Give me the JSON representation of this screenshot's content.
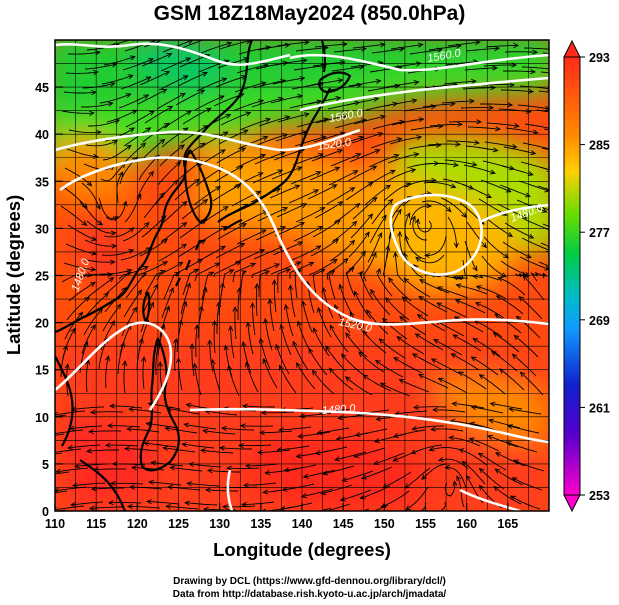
{
  "title": "GSM 18Z18May2024 (850.0hPa)",
  "xlabel": "Longitude (degrees)",
  "ylabel": "Latitude  (degrees)",
  "footer": {
    "line1": "Drawing by DCL (https://www.gfd-dennou.org/library/dcl/)",
    "line2": "Data from http://database.rish.kyoto-u.ac.jp/arch/jmadata/"
  },
  "map": {
    "lon_range": [
      110,
      170
    ],
    "lat_range": [
      0,
      50
    ],
    "x_ticks": [
      110,
      115,
      120,
      125,
      130,
      135,
      140,
      145,
      150,
      155,
      160,
      165
    ],
    "y_ticks": [
      0,
      5,
      10,
      15,
      20,
      25,
      30,
      35,
      40,
      45
    ],
    "grid": true,
    "grid_spacing_deg": 2.5
  },
  "colorbar": {
    "ticks": [
      293,
      285,
      277,
      269,
      261,
      253
    ],
    "range": [
      253,
      293
    ],
    "colors": {
      "top": "#ff2a1a",
      "upper": "#ff9a00",
      "mid": "#22cc00",
      "lower": "#00aaff",
      "low": "#1010cc",
      "bottom": "#ff00cc"
    }
  },
  "contours": {
    "labels": [
      "1520.0",
      "1560.0",
      "1520.0",
      "1480.0",
      "1480.0",
      "1480.0",
      "1560.0"
    ],
    "line_color": "#ffffff"
  }
}
